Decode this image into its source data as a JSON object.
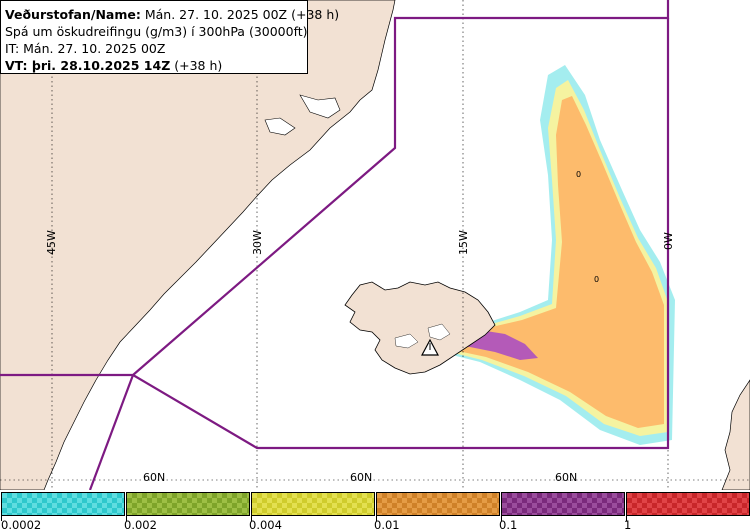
{
  "header": {
    "line1_label": "Veðurstofan/Name:",
    "line1_value": "Mán. 27. 10. 2025 00Z (+38 h)",
    "line2": "Spá um öskudreifingu (g/m3) í 300hPa (30000ft)",
    "line3": "IT: Mán. 27. 10. 2025 00Z",
    "line4_label": "VT: þri. 28.10.2025 14Z",
    "line4_value": "(+38 h)"
  },
  "grid": {
    "longitudes": [
      "45W",
      "30W",
      "15W",
      "0W"
    ],
    "latitude_labels": [
      "60N",
      "60N",
      "60N"
    ]
  },
  "contour_labels": [
    "0",
    "0"
  ],
  "colors": {
    "land": "#f2e1d3",
    "sea": "#ffffff",
    "boundary": "#7d1a82",
    "orange": "#fdbb6c",
    "yellow": "#f5f3a0",
    "cyan": "#86e7ea",
    "purple": "#b45ab8"
  },
  "legend": {
    "tick_labels": [
      "0.0002",
      "0.002",
      "0.004",
      "0.01",
      "0.1",
      "1"
    ],
    "swatches": [
      {
        "a": "#2ec8cc",
        "b": "#5fdde0"
      },
      {
        "a": "#7ea42a",
        "b": "#9dbf45"
      },
      {
        "a": "#cfcc2c",
        "b": "#e3e050"
      },
      {
        "a": "#cf8128",
        "b": "#e59c45"
      },
      {
        "a": "#7a2a7c",
        "b": "#9a4d9c"
      },
      {
        "a": "#c8262a",
        "b": "#e04347"
      }
    ]
  }
}
